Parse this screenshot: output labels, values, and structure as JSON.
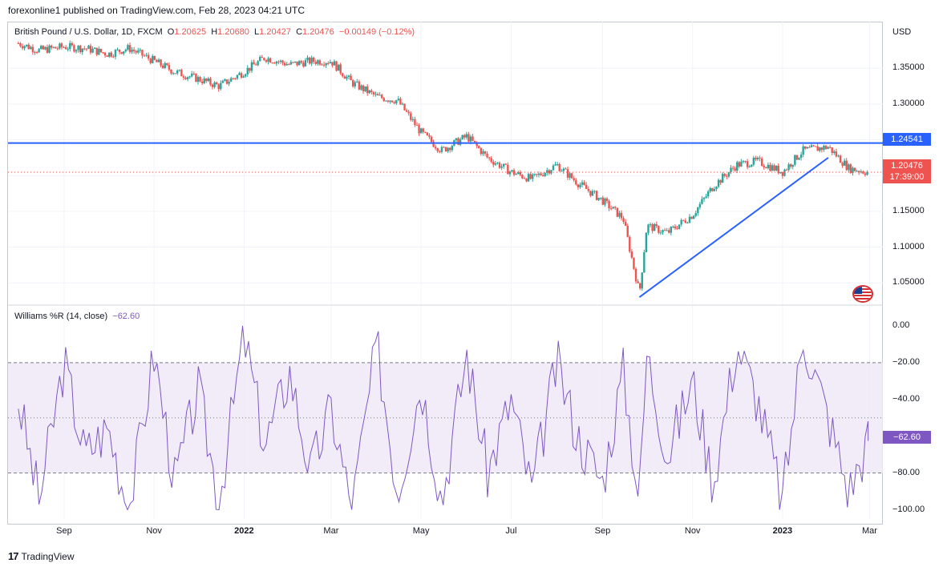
{
  "publisher_line": "forexonline1 published on TradingView.com, Feb 28, 2023 04:21 UTC",
  "legend": {
    "symbol": "British Pound / U.S. Dollar, 1D, FXCM",
    "o_label": "O",
    "o": "1.20625",
    "h_label": "H",
    "h": "1.20680",
    "l_label": "L",
    "l": "1.20427",
    "c_label": "C",
    "c": "1.20476",
    "change": "−0.00149 (−0.12%)"
  },
  "indicator_legend": {
    "name": "Williams %R (14, close)",
    "value": "−62.60"
  },
  "currency": "USD",
  "price_ticks": [
    "1.35000",
    "1.30000",
    "1.25000",
    "1.20000",
    "1.15000",
    "1.10000",
    "1.05000"
  ],
  "wr_ticks": [
    "0.00",
    "−20.00",
    "−40.00",
    "−60.00",
    "−80.00",
    "−100.00"
  ],
  "time_ticks": [
    "Sep",
    "Nov",
    "2022",
    "Mar",
    "May",
    "Jul",
    "Sep",
    "Nov",
    "2023",
    "Mar"
  ],
  "tags": {
    "resistance": "1.24541",
    "last_price": "1.20476",
    "countdown": "17:39:00",
    "wr_value": "−62.60"
  },
  "colors": {
    "up": "#26a69a",
    "down": "#ef5350",
    "line": "#2962ff",
    "wr": "#7e57c2",
    "band": "#ede7f6"
  },
  "footer": {
    "logo": "17",
    "brand": "TradingView"
  },
  "chart_data": [
    {
      "type": "candlestick",
      "title": "British Pound / U.S. Dollar, 1D, FXCM",
      "ylabel": "USD",
      "ylim": [
        1.02,
        1.395
      ],
      "x": [
        "2021-08-01",
        "2021-08-15",
        "2021-09-01",
        "2021-09-15",
        "2021-10-01",
        "2021-10-15",
        "2021-11-01",
        "2021-11-15",
        "2021-12-01",
        "2021-12-15",
        "2022-01-01",
        "2022-01-15",
        "2022-02-01",
        "2022-02-15",
        "2022-03-01",
        "2022-03-15",
        "2022-04-01",
        "2022-04-15",
        "2022-05-01",
        "2022-05-15",
        "2022-06-01",
        "2022-06-15",
        "2022-07-01",
        "2022-07-15",
        "2022-08-01",
        "2022-08-15",
        "2022-09-01",
        "2022-09-15",
        "2022-09-26",
        "2022-10-01",
        "2022-10-15",
        "2022-11-01",
        "2022-11-15",
        "2022-12-01",
        "2022-12-15",
        "2023-01-01",
        "2023-01-15",
        "2023-02-01",
        "2023-02-15",
        "2023-02-28"
      ],
      "close": [
        1.385,
        1.375,
        1.38,
        1.378,
        1.37,
        1.378,
        1.36,
        1.345,
        1.335,
        1.325,
        1.345,
        1.365,
        1.355,
        1.36,
        1.36,
        1.33,
        1.31,
        1.305,
        1.26,
        1.235,
        1.255,
        1.225,
        1.205,
        1.195,
        1.215,
        1.19,
        1.165,
        1.14,
        1.035,
        1.13,
        1.12,
        1.145,
        1.185,
        1.215,
        1.22,
        1.205,
        1.235,
        1.24,
        1.21,
        1.20476
      ],
      "series": [
        {
          "name": "Resistance",
          "type": "hline",
          "value": 1.24541
        },
        {
          "name": "Trendline",
          "type": "segment",
          "x": [
            "2022-09-26",
            "2023-02-01"
          ],
          "y": [
            1.03,
            1.225
          ]
        }
      ]
    },
    {
      "type": "line",
      "title": "Williams %R (14, close)",
      "ylim": [
        -105,
        3
      ],
      "bands": [
        -20,
        -50,
        -80
      ],
      "x": [
        "2021-08-01",
        "2021-08-15",
        "2021-09-01",
        "2021-09-15",
        "2021-10-01",
        "2021-10-15",
        "2021-11-01",
        "2021-11-15",
        "2021-12-01",
        "2021-12-15",
        "2022-01-01",
        "2022-01-15",
        "2022-02-01",
        "2022-02-15",
        "2022-03-01",
        "2022-03-15",
        "2022-04-01",
        "2022-04-15",
        "2022-05-01",
        "2022-05-15",
        "2022-06-01",
        "2022-06-15",
        "2022-07-01",
        "2022-07-15",
        "2022-08-01",
        "2022-08-15",
        "2022-09-01",
        "2022-09-15",
        "2022-09-26",
        "2022-10-01",
        "2022-10-15",
        "2022-11-01",
        "2022-11-15",
        "2022-12-01",
        "2022-12-15",
        "2023-01-01",
        "2023-01-15",
        "2023-02-01",
        "2023-02-15",
        "2023-02-28"
      ],
      "values": [
        -40,
        -95,
        -20,
        -70,
        -55,
        -100,
        -15,
        -85,
        -35,
        -95,
        -5,
        -65,
        -25,
        -80,
        -45,
        -100,
        -10,
        -90,
        -30,
        -95,
        -15,
        -80,
        -40,
        -90,
        -20,
        -60,
        -85,
        -25,
        -95,
        -15,
        -70,
        -30,
        -85,
        -10,
        -40,
        -95,
        -5,
        -50,
        -90,
        -62.6
      ]
    }
  ]
}
